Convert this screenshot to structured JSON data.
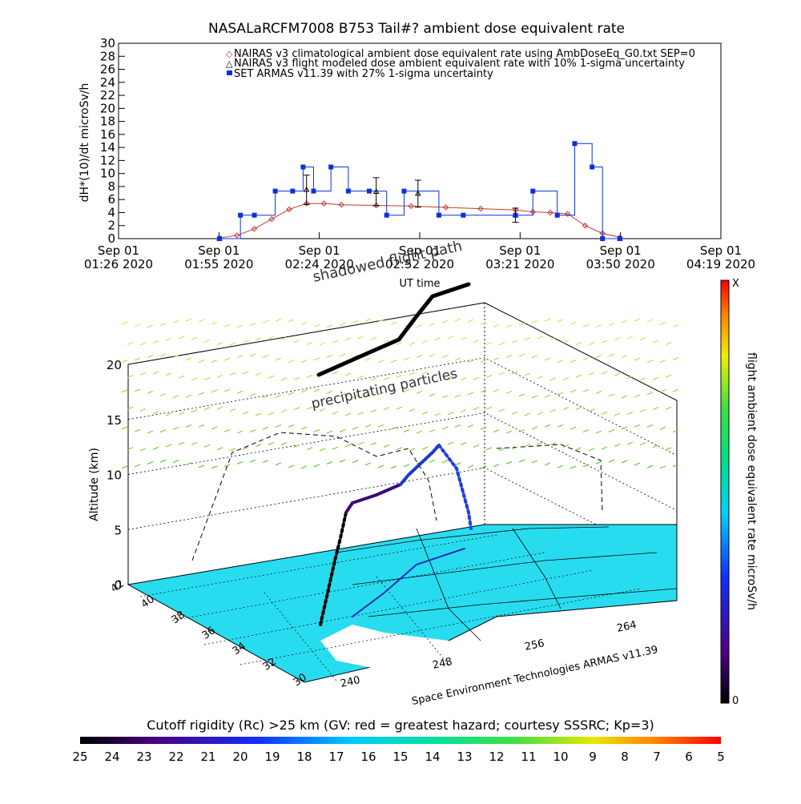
{
  "title": "NASALaRCFM7008  B753 Tail#? ambient dose equivalent rate",
  "top_chart": {
    "ylabel": "dH*(10)/dt microSv/h",
    "xlabel": "UT time",
    "legend": [
      "NAIRAS v3 climatological ambient dose equivalent rate using AmbDoseEq_G0.txt SEP=0",
      "NAIRAS v3 flight modeled dose ambient equivalent rate with 10% 1-sigma uncertainty",
      "SET ARMAS v11.39 with 27% 1-sigma uncertainty"
    ],
    "x_ticks_line1": [
      "Sep 01",
      "Sep 01",
      "Sep 01",
      "Sep 01",
      "Sep 01",
      "Sep 01",
      "Sep 01"
    ],
    "x_ticks_line2": [
      "01:26 2020",
      "01:55 2020",
      "02:24 2020",
      "02:52 2020",
      "03:21 2020",
      "03:50 2020",
      "04:19 2020"
    ],
    "y_ticks": [
      "0",
      "2",
      "4",
      "6",
      "8",
      "10",
      "12",
      "14",
      "16",
      "18",
      "20",
      "22",
      "24",
      "26",
      "28",
      "30"
    ]
  },
  "chart_data": [
    {
      "type": "line",
      "title": "NASALaRCFM7008  B753 Tail#? ambient dose equivalent rate",
      "xlabel": "UT time",
      "ylabel": "dH*(10)/dt microSv/h",
      "xlim": [
        "2020-09-01 01:26",
        "2020-09-01 04:19"
      ],
      "ylim": [
        0,
        30
      ],
      "grid": false,
      "legend_position": "top-right",
      "series": [
        {
          "name": "NAIRAS v3 climatological ambient dose equivalent rate using AmbDoseEq_G0.txt SEP=0",
          "color": "#c0392b",
          "marker": "diamond",
          "x": [
            "01:55",
            "02:00",
            "02:05",
            "02:10",
            "02:15",
            "02:20",
            "02:25",
            "02:30",
            "02:40",
            "02:50",
            "03:00",
            "03:10",
            "03:20",
            "03:25",
            "03:30",
            "03:35",
            "03:40",
            "03:45",
            "03:50"
          ],
          "y": [
            0.1,
            0.5,
            1.5,
            3.0,
            4.5,
            5.4,
            5.4,
            5.2,
            5.1,
            5.0,
            4.8,
            4.6,
            4.4,
            4.1,
            4.0,
            3.8,
            2.0,
            0.8,
            0.2
          ]
        },
        {
          "name": "NAIRAS v3 flight modeled dose ambient equivalent rate with 10% 1-sigma uncertainty",
          "color": "#000000",
          "marker": "triangle",
          "x": [
            "01:55",
            "02:20",
            "02:40",
            "02:52",
            "03:20",
            "03:50"
          ],
          "y": [
            0.0,
            7.5,
            7.2,
            6.9,
            3.6,
            0.0
          ]
        },
        {
          "name": "SET ARMAS v11.39 with 27% 1-sigma uncertainty",
          "color": "#0a2fe0",
          "marker": "square",
          "x": [
            "01:55",
            "02:01",
            "02:05",
            "02:11",
            "02:16",
            "02:19",
            "02:22",
            "02:27",
            "02:32",
            "02:38",
            "02:43",
            "02:48",
            "02:58",
            "03:05",
            "03:20",
            "03:25",
            "03:32",
            "03:37",
            "03:42",
            "03:45",
            "03:50"
          ],
          "y": [
            0.0,
            3.6,
            3.6,
            7.3,
            7.3,
            11.0,
            7.3,
            11.0,
            7.3,
            7.3,
            3.6,
            7.3,
            3.6,
            3.6,
            3.6,
            7.3,
            3.6,
            14.6,
            11.0,
            0.0,
            0.0
          ]
        }
      ]
    },
    {
      "type": "scatter",
      "title": "",
      "zlabel": "Altitude (km)",
      "z_ticks": [
        "0",
        "5",
        "10",
        "15",
        "20"
      ],
      "y_ticks": [
        "30",
        "32",
        "34",
        "36",
        "38",
        "40",
        "42"
      ],
      "x_ticks": [
        "240",
        "248",
        "256",
        "264"
      ],
      "annotations": [
        "shadowed flight path",
        "precipitating particles"
      ],
      "colorbar_right_label": "flight ambient dose equivalent rate microSv/h",
      "colorbar_right_ticks": [
        "X",
        "0"
      ],
      "credit": "Space Environment Technologies ARMAS v11.39"
    }
  ],
  "bottom_colorbar": {
    "label": "Cutoff rigidity (Rc) >25 km (GV: red = greatest hazard; courtesy SSSRC; Kp=3)",
    "ticks": [
      "25",
      "24",
      "23",
      "22",
      "21",
      "20",
      "19",
      "18",
      "17",
      "16",
      "15",
      "14",
      "13",
      "12",
      "11",
      "10",
      "9",
      "8",
      "7",
      "6",
      "5"
    ]
  },
  "colors": {
    "nairas_clim": "#c0392b",
    "armas": "#0a2fe0",
    "map_fill": "#28dcf0",
    "particles": "#a8d84a"
  }
}
